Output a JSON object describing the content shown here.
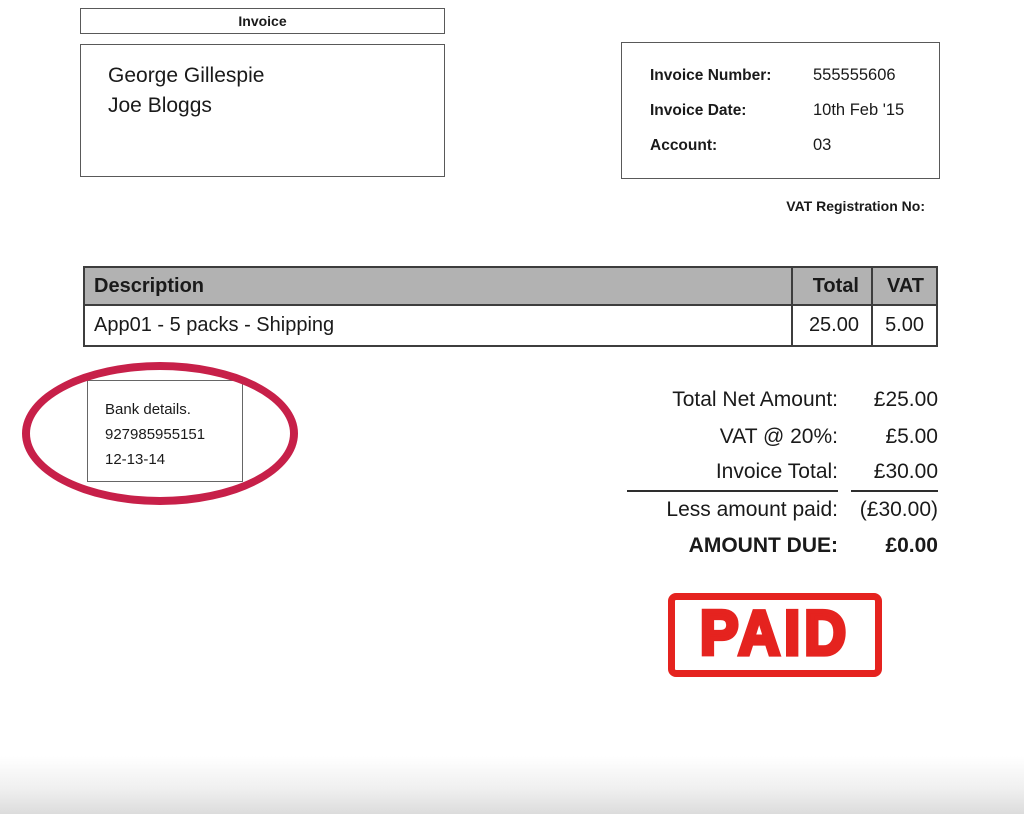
{
  "title": "Invoice",
  "customer": {
    "lines": [
      "George Gillespie",
      "Joe Bloggs"
    ]
  },
  "meta": {
    "rows": [
      {
        "label": "Invoice Number:",
        "value": "555555606"
      },
      {
        "label": "Invoice Date:",
        "value": "10th Feb '15"
      },
      {
        "label": "Account:",
        "value": "03"
      }
    ],
    "vat_registration_label": "VAT Registration No:"
  },
  "line_items": {
    "columns": {
      "description": "Description",
      "total": "Total",
      "vat": "VAT"
    },
    "rows": [
      {
        "description": "App01 - 5 packs - Shipping",
        "total": "25.00",
        "vat": "5.00"
      }
    ]
  },
  "bank_details": {
    "lines": [
      "Bank details.",
      "927985955151",
      "12-13-14"
    ]
  },
  "totals": {
    "rows": [
      {
        "label": "Total Net Amount:",
        "value": "£25.00"
      },
      {
        "label": "VAT @ 20%:",
        "value": "£5.00"
      },
      {
        "label": "Invoice Total:",
        "value": "£30.00"
      },
      {
        "label": "Less amount paid:",
        "value": "(£30.00)"
      },
      {
        "label": "AMOUNT DUE:",
        "value": "£0.00"
      }
    ]
  },
  "stamp": {
    "text": "PAID"
  },
  "colors": {
    "table_header_bg": "#b2b2b2",
    "table_border": "#3d3d3d",
    "box_border": "#595959",
    "highlight_ellipse": "#c72049",
    "stamp_red": "#e5231f"
  }
}
